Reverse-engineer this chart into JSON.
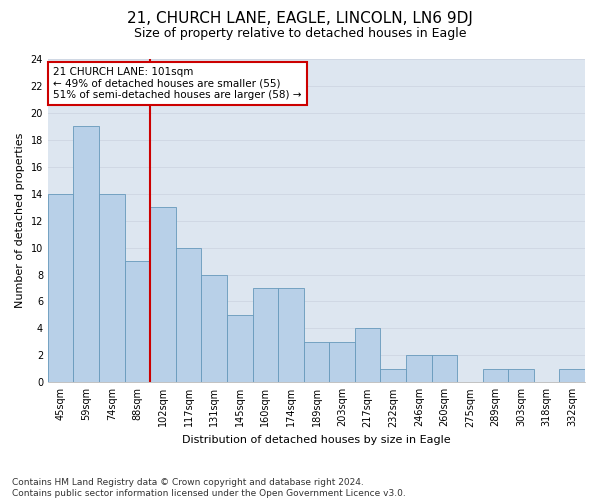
{
  "title": "21, CHURCH LANE, EAGLE, LINCOLN, LN6 9DJ",
  "subtitle": "Size of property relative to detached houses in Eagle",
  "xlabel": "Distribution of detached houses by size in Eagle",
  "ylabel": "Number of detached properties",
  "categories": [
    "45sqm",
    "59sqm",
    "74sqm",
    "88sqm",
    "102sqm",
    "117sqm",
    "131sqm",
    "145sqm",
    "160sqm",
    "174sqm",
    "189sqm",
    "203sqm",
    "217sqm",
    "232sqm",
    "246sqm",
    "260sqm",
    "275sqm",
    "289sqm",
    "303sqm",
    "318sqm",
    "332sqm"
  ],
  "values": [
    14,
    19,
    14,
    9,
    13,
    10,
    8,
    5,
    7,
    7,
    3,
    3,
    4,
    1,
    2,
    2,
    0,
    1,
    1,
    0,
    1
  ],
  "bar_color": "#b8d0e8",
  "bar_edge_color": "#6699bb",
  "vline_x_index": 4,
  "vline_color": "#cc0000",
  "annotation_line1": "21 CHURCH LANE: 101sqm",
  "annotation_line2": "← 49% of detached houses are smaller (55)",
  "annotation_line3": "51% of semi-detached houses are larger (58) →",
  "annotation_box_color": "#ffffff",
  "annotation_box_edge_color": "#cc0000",
  "ylim": [
    0,
    24
  ],
  "yticks": [
    0,
    2,
    4,
    6,
    8,
    10,
    12,
    14,
    16,
    18,
    20,
    22,
    24
  ],
  "grid_color": "#d0d8e4",
  "background_color": "#dde6f0",
  "footer_text": "Contains HM Land Registry data © Crown copyright and database right 2024.\nContains public sector information licensed under the Open Government Licence v3.0.",
  "title_fontsize": 11,
  "subtitle_fontsize": 9,
  "axis_label_fontsize": 8,
  "tick_fontsize": 7,
  "annotation_fontsize": 7.5,
  "footer_fontsize": 6.5
}
